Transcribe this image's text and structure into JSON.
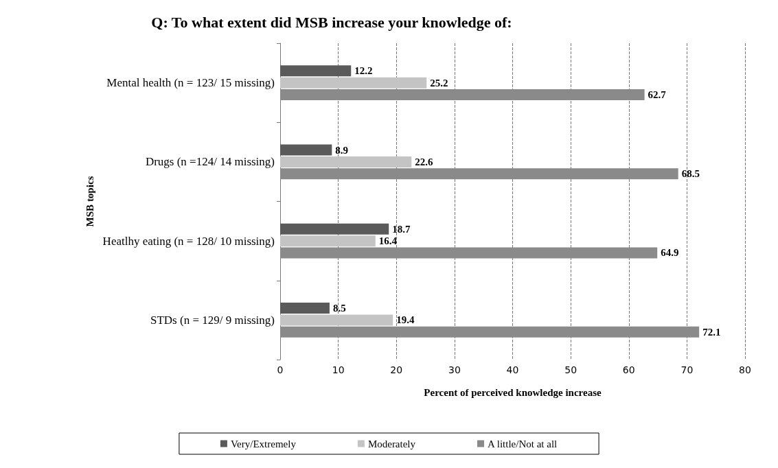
{
  "chart_data": {
    "type": "bar",
    "orientation": "horizontal",
    "title": "Q: To what extent did MSB increase your knowledge of:",
    "xlabel": "Percent of perceived knowledge increase",
    "ylabel": "MSB topics",
    "categories": [
      "Mental health (n = 123/ 15 missing)",
      "Drugs (n =124/ 14 missing)",
      "Heatlhy eating (n = 128/ 10 missing)",
      "STDs (n = 129/ 9 missing)"
    ],
    "series": [
      {
        "name": "Very/Extremely",
        "color": "#5a5a5a",
        "values": [
          12.2,
          8.9,
          18.7,
          8.5
        ]
      },
      {
        "name": "Moderately",
        "color": "#c4c4c4",
        "values": [
          25.2,
          22.6,
          16.4,
          19.4
        ]
      },
      {
        "name": "A little/Not at all",
        "color": "#8a8a8a",
        "values": [
          62.7,
          68.5,
          64.9,
          72.1
        ]
      }
    ],
    "xlim": [
      0,
      80
    ],
    "xticks": [
      0,
      10,
      20,
      30,
      40,
      50,
      60,
      70,
      80
    ],
    "grid": "x",
    "legend": "bottom",
    "data_labels": true
  }
}
